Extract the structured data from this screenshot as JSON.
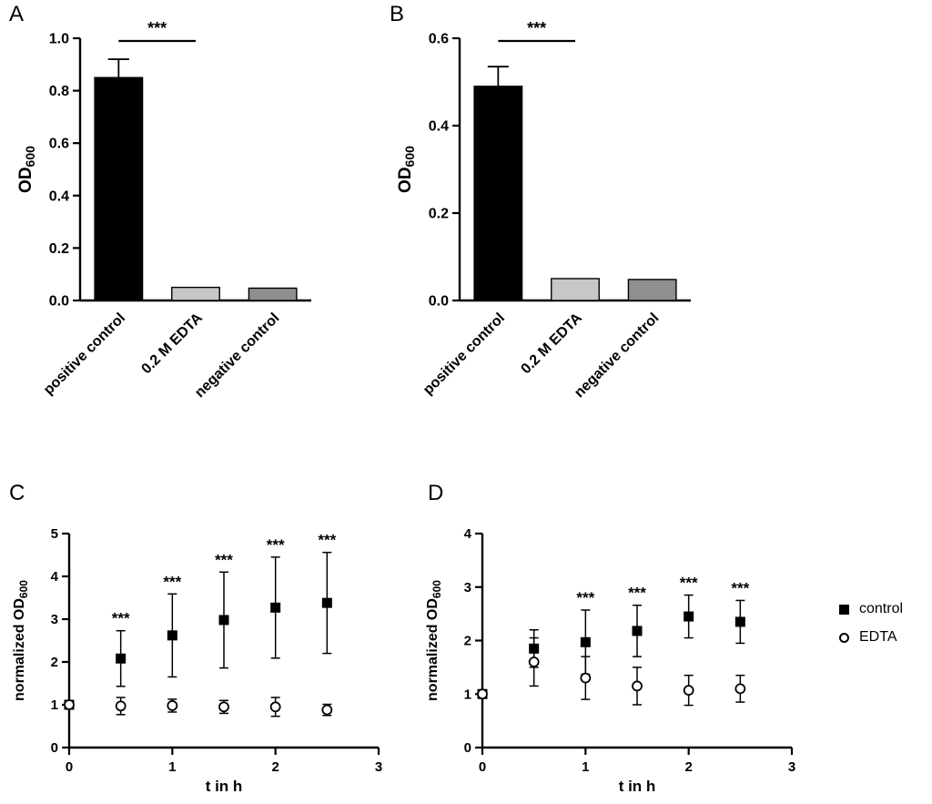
{
  "figure": {
    "panels": [
      {
        "id": "A",
        "label": "A"
      },
      {
        "id": "B",
        "label": "B"
      },
      {
        "id": "C",
        "label": "C"
      },
      {
        "id": "D",
        "label": "D"
      }
    ]
  },
  "legend": {
    "items": [
      {
        "marker": "filled-square-icon",
        "label": "control"
      },
      {
        "marker": "open-circle-icon",
        "label": "EDTA"
      }
    ]
  },
  "colors": {
    "axis": "#000000",
    "bar_positive_control": "#000000",
    "bar_edta": "#c7c7c7",
    "bar_negative_control": "#8f8f8f"
  },
  "chart_data": [
    {
      "id": "A",
      "type": "bar",
      "ylabel": {
        "text": "OD",
        "sub": "600"
      },
      "ylim": [
        0,
        1.0
      ],
      "yticks": [
        0,
        0.2,
        0.4,
        0.6,
        0.8,
        1.0
      ],
      "ytick_decimals": 1,
      "categories": [
        "positive control",
        "0.2 M EDTA",
        "negative control"
      ],
      "values": [
        0.85,
        0.05,
        0.047
      ],
      "errors": [
        0.07,
        0,
        0
      ],
      "bar_colors": [
        "#000000",
        "#c7c7c7",
        "#8f8f8f"
      ],
      "significance": {
        "label": "***",
        "from": 0,
        "to": 1
      }
    },
    {
      "id": "B",
      "type": "bar",
      "ylabel": {
        "text": "OD",
        "sub": "600"
      },
      "ylim": [
        0,
        0.6
      ],
      "yticks": [
        0,
        0.2,
        0.4,
        0.6
      ],
      "ytick_decimals": 1,
      "categories": [
        "positive control",
        "0.2 M EDTA",
        "negative control"
      ],
      "values": [
        0.49,
        0.05,
        0.048
      ],
      "errors": [
        0.045,
        0,
        0
      ],
      "bar_colors": [
        "#000000",
        "#c7c7c7",
        "#8f8f8f"
      ],
      "significance": {
        "label": "***",
        "from": 0,
        "to": 1
      }
    },
    {
      "id": "C",
      "type": "scatter",
      "xlabel": "t in h",
      "ylabel": {
        "text": "normalized OD",
        "sub": "600"
      },
      "xlim": [
        0,
        3
      ],
      "ylim": [
        0,
        5
      ],
      "xticks": [
        0,
        1,
        2,
        3
      ],
      "yticks": [
        0,
        1,
        2,
        3,
        4,
        5
      ],
      "x": [
        0,
        0.5,
        1,
        1.5,
        2,
        2.5
      ],
      "series": [
        {
          "name": "control",
          "marker": "filled-square",
          "values": [
            1.0,
            2.08,
            2.62,
            2.98,
            3.27,
            3.38
          ],
          "errors": [
            0,
            0.65,
            0.97,
            1.12,
            1.18,
            1.18
          ]
        },
        {
          "name": "EDTA",
          "marker": "open-circle",
          "values": [
            1.0,
            0.97,
            0.98,
            0.95,
            0.95,
            0.88
          ],
          "errors": [
            0,
            0.2,
            0.15,
            0.15,
            0.22,
            0.13
          ]
        }
      ],
      "significance": {
        "label": "***",
        "x": [
          0.5,
          1,
          1.5,
          2,
          2.5
        ]
      }
    },
    {
      "id": "D",
      "type": "scatter",
      "xlabel": "t in h",
      "ylabel": {
        "text": "normalized OD",
        "sub": "600"
      },
      "xlim": [
        0,
        3
      ],
      "ylim": [
        0,
        4
      ],
      "xticks": [
        0,
        1,
        2,
        3
      ],
      "yticks": [
        0,
        1,
        2,
        3,
        4
      ],
      "x": [
        0,
        0.5,
        1,
        1.5,
        2,
        2.5
      ],
      "series": [
        {
          "name": "control",
          "marker": "filled-square",
          "values": [
            1.0,
            1.85,
            1.97,
            2.18,
            2.45,
            2.35
          ],
          "errors": [
            0,
            0.35,
            0.6,
            0.48,
            0.4,
            0.4
          ]
        },
        {
          "name": "EDTA",
          "marker": "open-circle",
          "values": [
            1.0,
            1.6,
            1.3,
            1.15,
            1.07,
            1.1
          ],
          "errors": [
            0,
            0.45,
            0.4,
            0.35,
            0.28,
            0.25
          ]
        }
      ],
      "significance": {
        "label": "***",
        "x": [
          1,
          1.5,
          2,
          2.5
        ]
      }
    }
  ]
}
